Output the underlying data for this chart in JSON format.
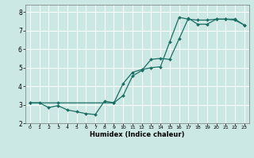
{
  "xlabel": "Humidex (Indice chaleur)",
  "bg_color": "#cce8e4",
  "grid_color": "#ffffff",
  "line_color": "#1a6e64",
  "xlim": [
    -0.5,
    23.5
  ],
  "ylim": [
    2.0,
    8.4
  ],
  "xticks": [
    0,
    1,
    2,
    3,
    4,
    5,
    6,
    7,
    8,
    9,
    10,
    11,
    12,
    13,
    14,
    15,
    16,
    17,
    18,
    19,
    20,
    21,
    22,
    23
  ],
  "yticks": [
    2,
    3,
    4,
    5,
    6,
    7,
    8
  ],
  "line1_x": [
    0,
    1,
    2,
    3,
    4,
    5,
    6,
    7,
    8,
    9,
    10,
    11,
    12,
    13,
    14,
    15,
    16,
    17,
    18,
    19,
    20,
    21,
    22,
    23
  ],
  "line1_y": [
    3.1,
    3.1,
    2.85,
    2.95,
    2.72,
    2.62,
    2.52,
    2.47,
    3.2,
    3.1,
    4.15,
    4.75,
    4.9,
    5.0,
    5.05,
    6.4,
    7.72,
    7.62,
    7.57,
    7.57,
    7.62,
    7.62,
    7.57,
    7.3
  ],
  "line2_x": [
    0,
    3,
    9,
    10,
    11,
    12,
    13,
    14,
    15,
    16,
    17,
    18,
    19,
    20,
    21,
    22,
    23
  ],
  "line2_y": [
    3.1,
    3.1,
    3.1,
    3.5,
    4.55,
    4.85,
    5.45,
    5.5,
    5.45,
    6.55,
    7.67,
    7.35,
    7.35,
    7.62,
    7.62,
    7.62,
    7.3
  ],
  "figsize": [
    3.2,
    2.0
  ],
  "dpi": 100
}
